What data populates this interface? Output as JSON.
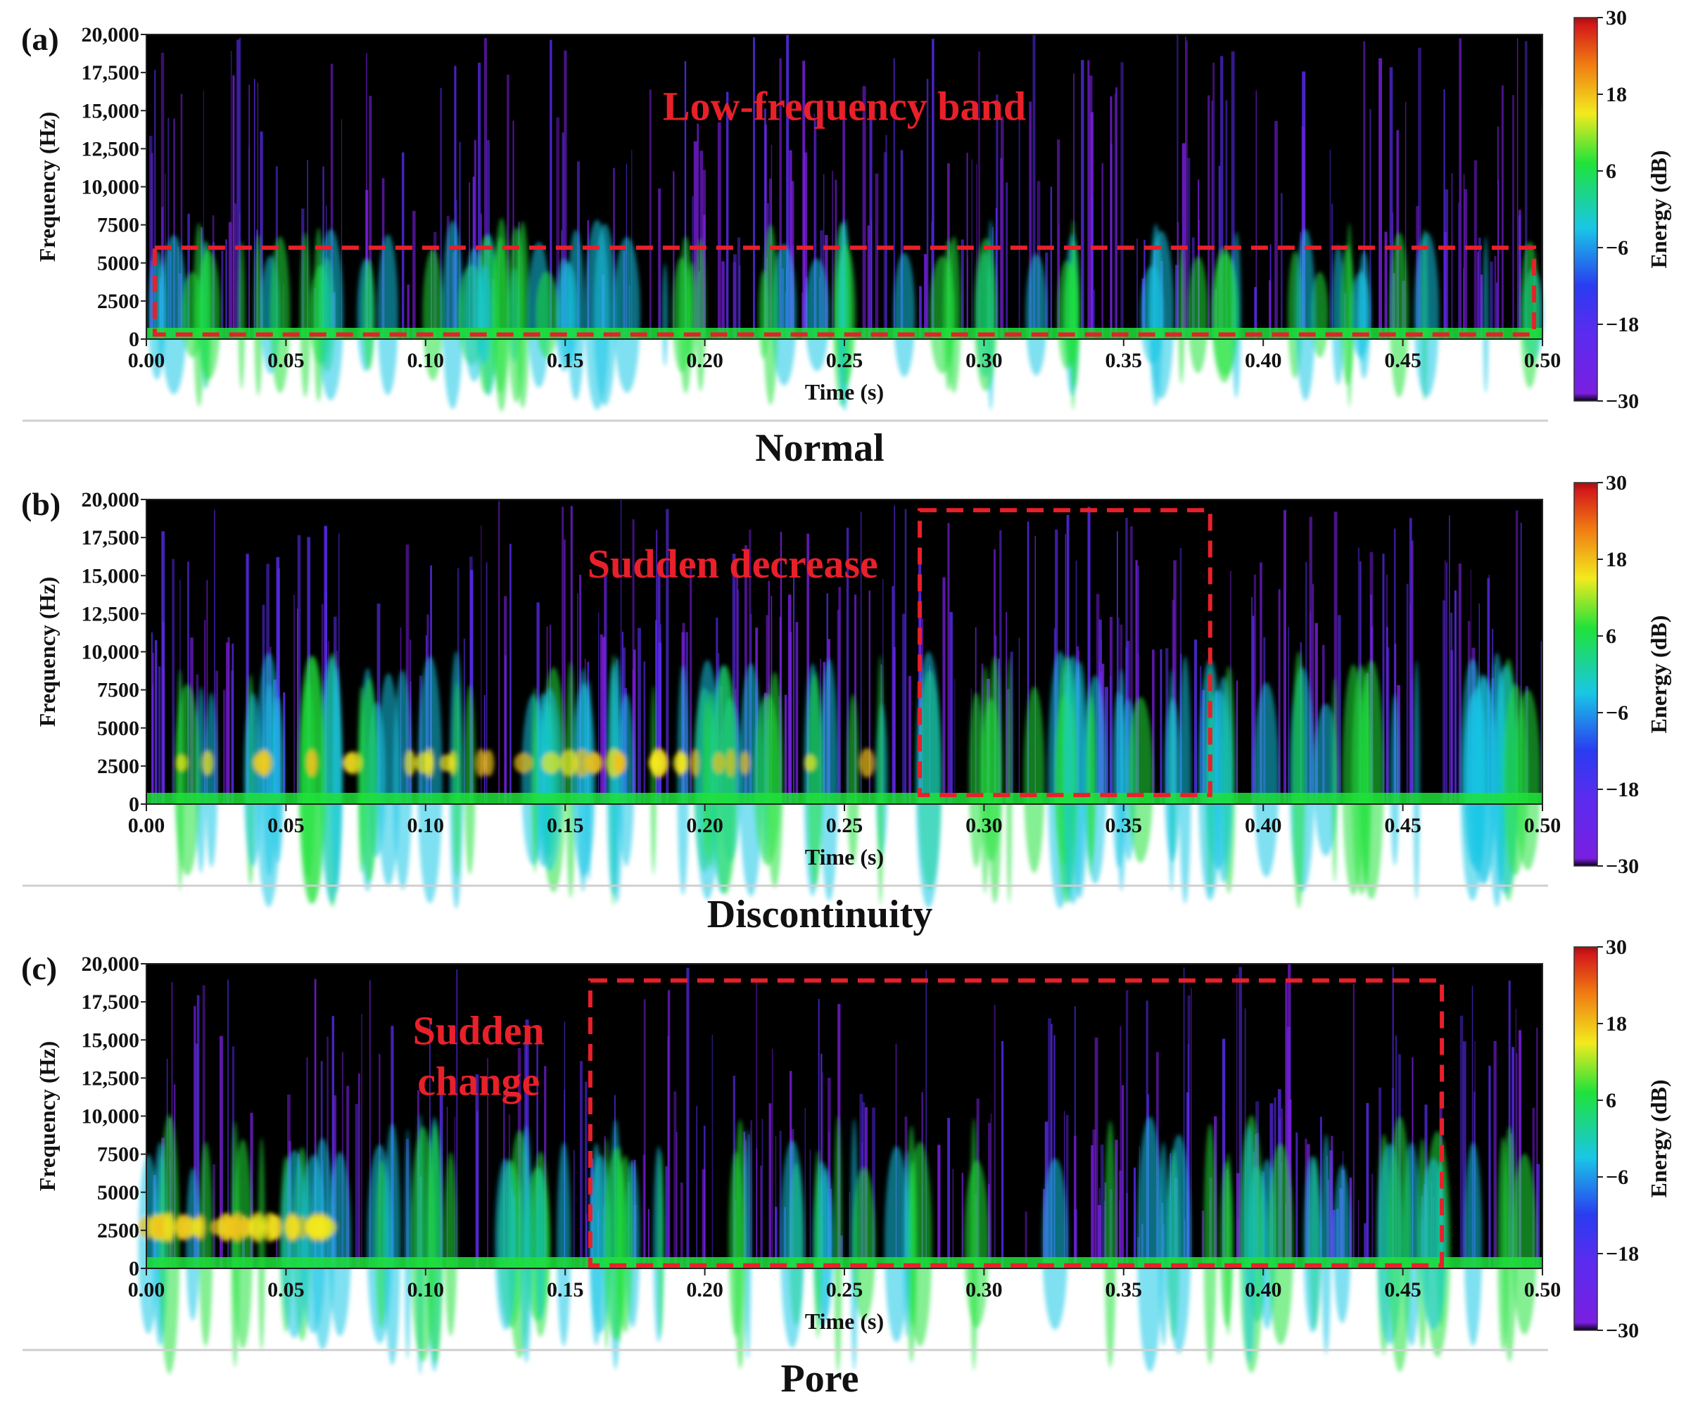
{
  "chart_data": [
    {
      "type": "heatmap",
      "panel_label": "(a)",
      "caption": "Normal",
      "xlabel": "Time (s)",
      "ylabel": "Frequency (Hz)",
      "xlim": [
        0,
        0.5
      ],
      "ylim": [
        0,
        20000
      ],
      "x_ticks": [
        0,
        0.05,
        0.1,
        0.15,
        0.2,
        0.25,
        0.3,
        0.35,
        0.4,
        0.45,
        0.5
      ],
      "x_tick_labels": [
        "0.00",
        "0.05",
        "0.10",
        "0.15",
        "0.20",
        "0.25",
        "0.30",
        "0.35",
        "0.40",
        "0.45",
        "0.50"
      ],
      "y_ticks": [
        0,
        2500,
        5000,
        7500,
        10000,
        12500,
        15000,
        17500,
        20000
      ],
      "y_tick_labels": [
        "0",
        "2500",
        "5000",
        "7500",
        "10,000",
        "12,500",
        "15,000",
        "17,500",
        "20,000"
      ],
      "colorbar": {
        "label": "Energy (dB)",
        "range": [
          -30,
          30
        ],
        "ticks": [
          30,
          18,
          6,
          -6,
          -18,
          -30
        ],
        "tick_labels": [
          "30",
          "18",
          "6",
          "−6",
          "−18",
          "−30"
        ]
      },
      "annotation": {
        "text": "Low-frequency band",
        "box": {
          "t0": 0.003,
          "t1": 0.497,
          "f0": 300,
          "f1": 6000
        }
      }
    },
    {
      "type": "heatmap",
      "panel_label": "(b)",
      "caption": "Discontinuity",
      "xlabel": "Time (s)",
      "ylabel": "Frequency (Hz)",
      "xlim": [
        0,
        0.5
      ],
      "ylim": [
        0,
        20000
      ],
      "x_ticks": [
        0,
        0.05,
        0.1,
        0.15,
        0.2,
        0.25,
        0.3,
        0.35,
        0.4,
        0.45,
        0.5
      ],
      "x_tick_labels": [
        "0.00",
        "0.05",
        "0.10",
        "0.15",
        "0.20",
        "0.25",
        "0.30",
        "0.35",
        "0.40",
        "0.45",
        "0.50"
      ],
      "y_ticks": [
        0,
        2500,
        5000,
        7500,
        10000,
        12500,
        15000,
        17500,
        20000
      ],
      "y_tick_labels": [
        "0",
        "2500",
        "5000",
        "7500",
        "10,000",
        "12,500",
        "15,000",
        "17,500",
        "20,000"
      ],
      "colorbar": {
        "label": "Energy (dB)",
        "range": [
          -30,
          30
        ],
        "ticks": [
          30,
          18,
          6,
          -6,
          -18,
          -30
        ],
        "tick_labels": [
          "30",
          "18",
          "6",
          "−6",
          "−18",
          "−30"
        ]
      },
      "annotation": {
        "text": "Sudden decrease",
        "box": {
          "t0": 0.277,
          "t1": 0.381,
          "f0": 600,
          "f1": 19300
        }
      }
    },
    {
      "type": "heatmap",
      "panel_label": "(c)",
      "caption": "Pore",
      "xlabel": "Time (s)",
      "ylabel": "Frequency (Hz)",
      "xlim": [
        0,
        0.5
      ],
      "ylim": [
        0,
        20000
      ],
      "x_ticks": [
        0,
        0.05,
        0.1,
        0.15,
        0.2,
        0.25,
        0.3,
        0.35,
        0.4,
        0.45,
        0.5
      ],
      "x_tick_labels": [
        "0.00",
        "0.05",
        "0.10",
        "0.15",
        "0.20",
        "0.25",
        "0.30",
        "0.35",
        "0.40",
        "0.45",
        "0.50"
      ],
      "y_ticks": [
        0,
        2500,
        5000,
        7500,
        10000,
        12500,
        15000,
        17500,
        20000
      ],
      "y_tick_labels": [
        "0",
        "2500",
        "5000",
        "7500",
        "10,000",
        "12,500",
        "15,000",
        "17,500",
        "20,000"
      ],
      "colorbar": {
        "label": "Energy (dB)",
        "range": [
          -30,
          30
        ],
        "ticks": [
          30,
          18,
          6,
          -6,
          -18,
          -30
        ],
        "tick_labels": [
          "30",
          "18",
          "6",
          "−6",
          "−18",
          "−30"
        ]
      },
      "annotation": {
        "text_lines": [
          "Sudden",
          "change"
        ],
        "box": {
          "t0": 0.159,
          "t1": 0.464,
          "f0": 200,
          "f1": 18900
        }
      }
    }
  ],
  "style": {
    "annotation_color": "#e8202a",
    "spectrogram_background": "#000000",
    "colormap": [
      "#1a0033",
      "#7a1fe0",
      "#2a3cf0",
      "#19c6e6",
      "#1fe23a",
      "#f2ea1e",
      "#f07a12",
      "#d41a1a"
    ]
  }
}
